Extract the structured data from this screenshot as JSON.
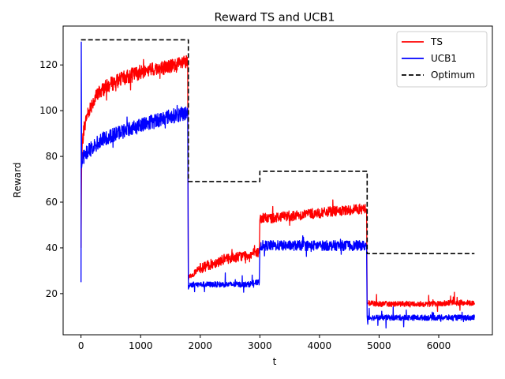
{
  "chart_data": {
    "type": "line",
    "title": "Reward TS and UCB1",
    "xlabel": "t",
    "ylabel": "Reward",
    "xlim": [
      -300,
      6900
    ],
    "ylim": [
      2,
      137
    ],
    "xticks": [
      0,
      1000,
      2000,
      3000,
      4000,
      5000,
      6000
    ],
    "yticks": [
      20,
      40,
      60,
      80,
      100,
      120
    ],
    "legend_position": "top-right",
    "grid": false,
    "series": [
      {
        "name": "TS",
        "color": "#ff0000",
        "style": "solid",
        "x": [
          0,
          10,
          20,
          50,
          100,
          200,
          300,
          400,
          600,
          800,
          1000,
          1200,
          1400,
          1600,
          1790,
          1800,
          1810,
          1900,
          2000,
          2200,
          2400,
          2600,
          2800,
          2990,
          3000,
          3010,
          3200,
          3400,
          3600,
          3800,
          4000,
          4200,
          4400,
          4600,
          4790,
          4800,
          4810,
          5000,
          5200,
          5400,
          5600,
          5800,
          6000,
          6200,
          6400,
          6600
        ],
        "y": [
          40,
          75,
          85,
          92,
          98,
          104,
          108,
          110,
          113,
          115,
          117,
          118,
          119,
          120,
          121,
          26,
          27,
          29,
          31,
          33,
          35,
          36,
          37,
          38,
          52,
          53,
          53,
          54,
          54,
          55,
          55,
          56,
          56,
          57,
          57,
          16,
          16,
          15.5,
          15.5,
          15.5,
          15.5,
          15.5,
          15.5,
          16,
          16,
          16
        ]
      },
      {
        "name": "UCB1",
        "color": "#0000ff",
        "style": "solid",
        "x": [
          0,
          5,
          10,
          20,
          50,
          100,
          200,
          300,
          400,
          600,
          800,
          1000,
          1200,
          1400,
          1600,
          1790,
          1800,
          1810,
          2000,
          2200,
          2400,
          2600,
          2800,
          2990,
          3000,
          3010,
          3200,
          3400,
          3600,
          3800,
          4000,
          4200,
          4400,
          4600,
          4790,
          4800,
          4810,
          5000,
          5200,
          5400,
          5600,
          5800,
          6000,
          6200,
          6400,
          6600
        ],
        "y": [
          25,
          130,
          75,
          78,
          80,
          82,
          84,
          86,
          88,
          90,
          92,
          94,
          95,
          97,
          98,
          99,
          22,
          24,
          24,
          24,
          24,
          24,
          24,
          25,
          40,
          41,
          41,
          41,
          41,
          41,
          41,
          41,
          41,
          41,
          41,
          10,
          9.5,
          9.5,
          9.5,
          9.5,
          9.5,
          9.5,
          9.5,
          9.5,
          9.5,
          9.5
        ]
      },
      {
        "name": "Optimum",
        "color": "#000000",
        "style": "dashed",
        "x": [
          0,
          1800,
          1800,
          3000,
          3000,
          4800,
          4800,
          6600
        ],
        "y": [
          131,
          131,
          69,
          69,
          73.5,
          73.5,
          37.5,
          37.5
        ]
      }
    ]
  }
}
